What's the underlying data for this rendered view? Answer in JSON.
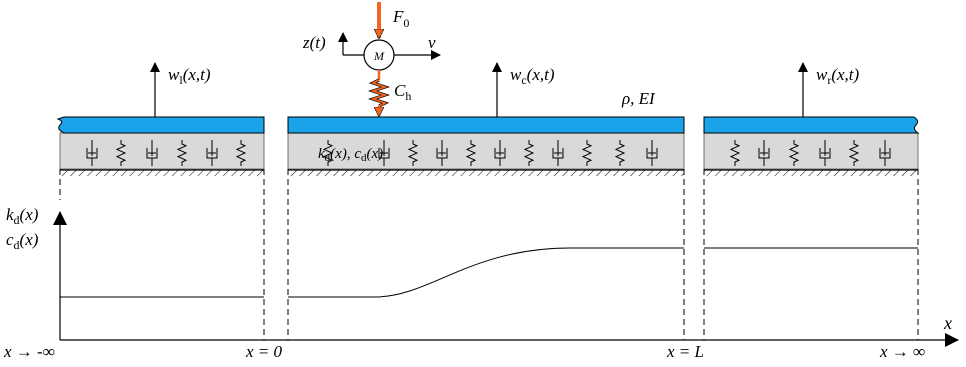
{
  "labels": {
    "force": "F",
    "force_sub": "0",
    "mass": "M",
    "velocity": "v",
    "mass_disp": "z(t)",
    "contact_spring": "C",
    "contact_spring_sub": "h",
    "beam_props": "ρ, EI",
    "support_props": "k_d(x), c_d(x)",
    "w_left": "w",
    "w_left_sub": "l",
    "w_center": "w",
    "w_center_sub": "c",
    "w_right": "w",
    "w_right_sub": "r",
    "w_args": "(x,t)",
    "axis_kd": "k",
    "axis_cd": "c",
    "axis_sub": "d",
    "axis_args": "(x)",
    "x_axis": "x",
    "pos_left": "x → -∞",
    "pos_zero": "x = 0",
    "pos_L": "x = L",
    "pos_right": "x → ∞"
  },
  "colors": {
    "beam": "#1aa3e8",
    "soil": "#d9d9d9",
    "force_arrow": "#f26522",
    "line": "#000000"
  }
}
